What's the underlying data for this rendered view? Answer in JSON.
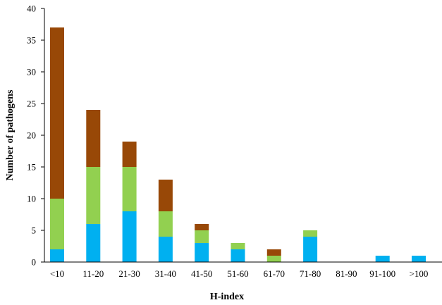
{
  "chart_data": {
    "type": "bar",
    "stacked": true,
    "categories": [
      "<10",
      "11-20",
      "21-30",
      "31-40",
      "41-50",
      "51-60",
      "61-70",
      "71-80",
      "81-90",
      "91-100",
      ">100"
    ],
    "series": [
      {
        "color": "#00b0f0",
        "values": [
          2,
          6,
          8,
          4,
          3,
          2,
          0,
          4,
          0,
          1,
          1
        ]
      },
      {
        "color": "#92d050",
        "values": [
          8,
          9,
          7,
          4,
          2,
          1,
          1,
          1,
          0,
          0,
          0
        ]
      },
      {
        "color": "#984807",
        "values": [
          27,
          9,
          4,
          5,
          1,
          0,
          1,
          0,
          0,
          0,
          0
        ]
      }
    ],
    "xlabel": "H-index",
    "ylabel": "Number of pathogens",
    "ylim": [
      0,
      40
    ],
    "yticks": [
      0,
      5,
      10,
      15,
      20,
      25,
      30,
      35,
      40
    ],
    "grid": false,
    "legend": "none"
  }
}
